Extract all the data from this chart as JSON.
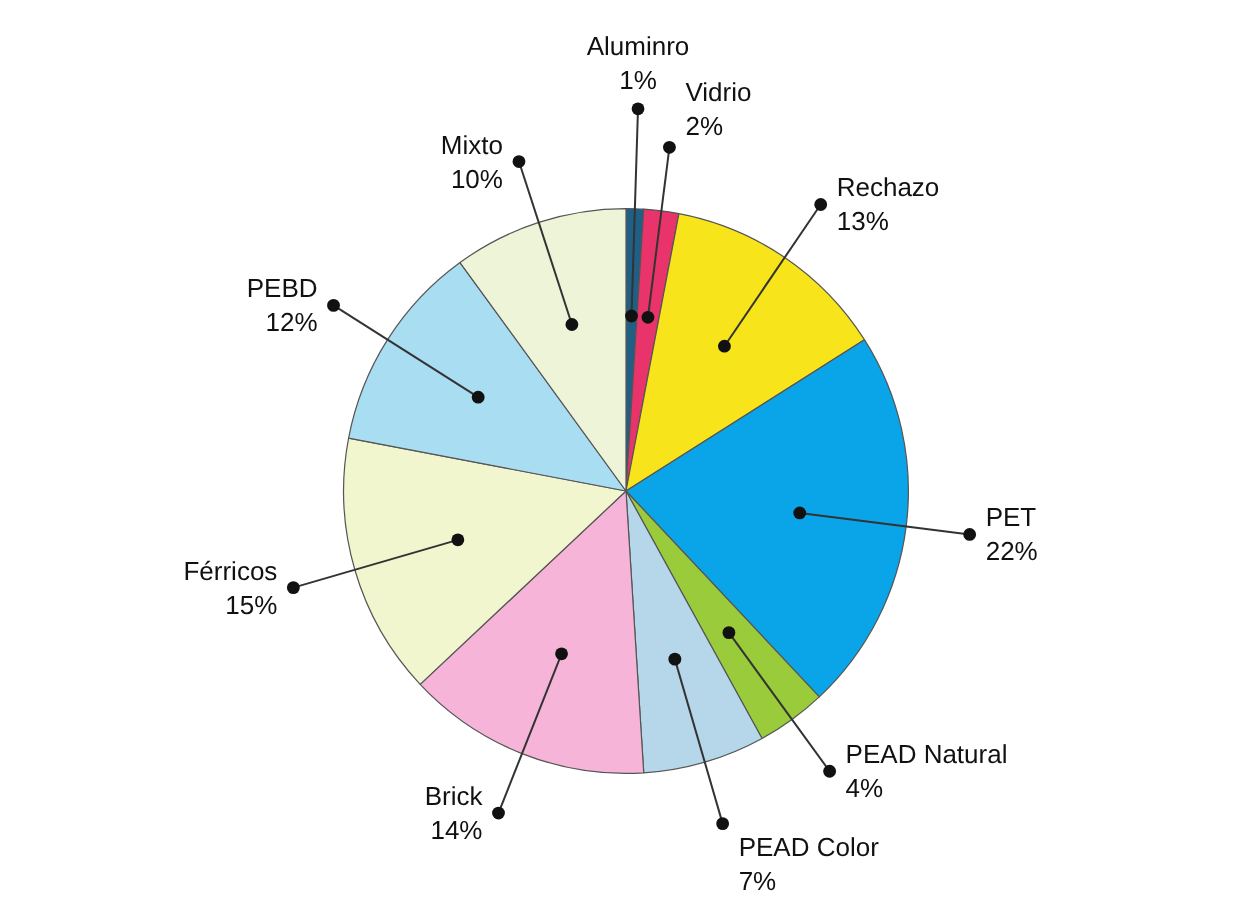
{
  "chart_data": {
    "type": "pie",
    "categories": [
      "Aluminro",
      "Vidrio",
      "Rechazo",
      "PET",
      "PEAD Natural",
      "PEAD Color",
      "Brick",
      "Férricos",
      "PEBD",
      "Mixto"
    ],
    "values": [
      1,
      2,
      13,
      22,
      4,
      7,
      14,
      15,
      12,
      10
    ],
    "value_labels": [
      "1%",
      "2%",
      "13%",
      "22%",
      "4%",
      "7%",
      "14%",
      "15%",
      "12%",
      "10%"
    ],
    "colors": [
      "#1f5f86",
      "#e8336b",
      "#f7e41a",
      "#0aa5e8",
      "#9acb3a",
      "#b6d6ea",
      "#f6b5d8",
      "#f1f6cf",
      "#a8ddf2",
      "#eef4d8"
    ]
  }
}
